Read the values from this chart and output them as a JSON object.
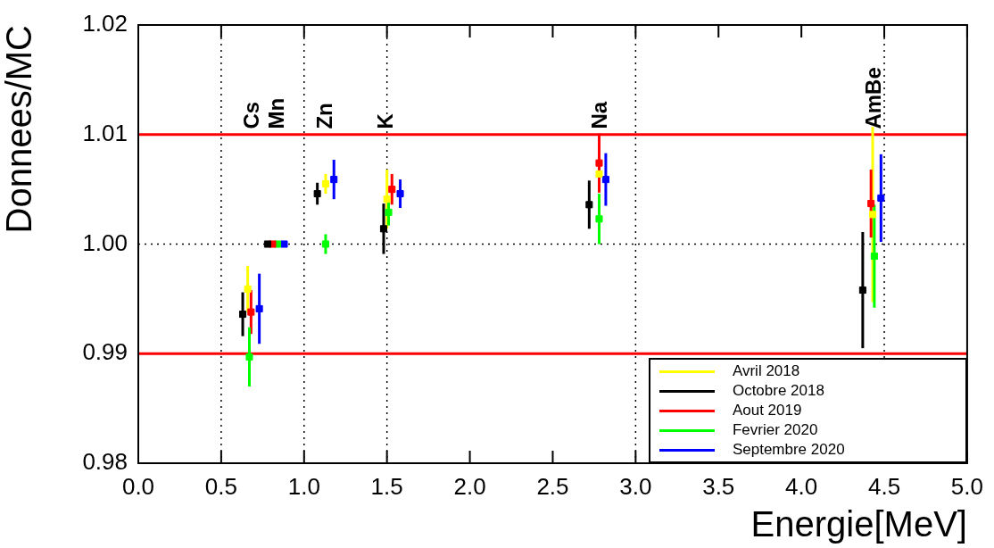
{
  "chart_data": {
    "type": "scatter",
    "xlabel": "Energie[MeV]",
    "ylabel": "Donnees/MC",
    "xlim": [
      0,
      5
    ],
    "ylim": [
      0.98,
      1.02
    ],
    "xticks": [
      {
        "value": 0,
        "label": "0.0"
      },
      {
        "value": 0.5,
        "label": "0.5"
      },
      {
        "value": 1,
        "label": "1.0"
      },
      {
        "value": 1.5,
        "label": "1.5"
      },
      {
        "value": 2,
        "label": "2.0"
      },
      {
        "value": 2.5,
        "label": "2.5"
      },
      {
        "value": 3,
        "label": "3.0"
      },
      {
        "value": 3.5,
        "label": "3.5"
      },
      {
        "value": 4,
        "label": "4.0"
      },
      {
        "value": 4.5,
        "label": "4.5"
      },
      {
        "value": 5,
        "label": "5.0"
      }
    ],
    "yticks": [
      0.98,
      0.99,
      {
        "value": 1,
        "label": "1.00"
      },
      1.01,
      1.02
    ],
    "grid": false,
    "legend": "bottom right",
    "marker": "square",
    "series": [
      {
        "name": "Avril 2018",
        "color": "#ffff00",
        "x": [
          0.66,
          1.13,
          1.5,
          2.78,
          4.43
        ],
        "values": [
          0.9959,
          1.0055,
          1.0041,
          1.0064,
          1.0027
        ],
        "errors": [
          0.0021,
          0.0009,
          0.0027,
          null,
          0.008
        ]
      },
      {
        "name": "Octobre 2018",
        "color": "#000000",
        "x": [
          0.63,
          0.78,
          1.08,
          1.48,
          2.72,
          4.37
        ],
        "values": [
          0.9936,
          1.0,
          1.0046,
          1.0014,
          1.0036,
          0.9958
        ],
        "errors": [
          0.002,
          null,
          0.001,
          0.0023,
          0.0022,
          0.0053
        ]
      },
      {
        "name": "Aout 2019",
        "color": "#ff0000",
        "x": [
          0.68,
          0.81,
          1.53,
          2.78,
          4.42
        ],
        "values": [
          0.9938,
          1.0,
          1.005,
          1.0074,
          1.0037
        ],
        "errors": [
          0.002,
          null,
          0.0014,
          0.0027,
          0.0031
        ]
      },
      {
        "name": "Fevrier 2020",
        "color": "#00ff00",
        "x": [
          0.67,
          0.84,
          1.13,
          1.51,
          2.78,
          4.44
        ],
        "values": [
          0.9897,
          1.0,
          1.0,
          1.0029,
          1.0023,
          0.9989
        ],
        "errors": [
          0.0027,
          null,
          0.0009,
          0.0012,
          0.0023,
          0.0047
        ]
      },
      {
        "name": "Septembre 2020",
        "color": "#0000ff",
        "x": [
          0.73,
          0.88,
          1.18,
          1.58,
          2.82,
          4.48
        ],
        "values": [
          0.9941,
          1.0,
          1.0059,
          1.0046,
          1.0059,
          1.0042
        ],
        "errors": [
          0.0032,
          null,
          0.0018,
          0.0013,
          0.0024,
          0.004
        ]
      }
    ],
    "ref_lines": [
      {
        "axis": "y",
        "value": 1.01,
        "color": "#ff0000",
        "line_style": "solid"
      },
      {
        "axis": "y",
        "value": 0.99,
        "color": "#ff0000",
        "line_style": "solid"
      },
      {
        "axis": "y",
        "value": 1.0,
        "color": "#000000",
        "line_style": "dotted"
      },
      {
        "axis": "x",
        "value": 0.5,
        "color": "#000000",
        "line_style": "dotted"
      },
      {
        "axis": "x",
        "value": 1.0,
        "color": "#000000",
        "line_style": "dotted"
      },
      {
        "axis": "x",
        "value": 1.5,
        "color": "#000000",
        "line_style": "dotted"
      },
      {
        "axis": "x",
        "value": 3.0,
        "color": "#000000",
        "line_style": "dotted"
      },
      {
        "axis": "x",
        "value": 4.5,
        "color": "#000000",
        "line_style": "dotted"
      }
    ],
    "annotations": [
      {
        "text": "Cs",
        "x": 0.69,
        "y": 1.0105
      },
      {
        "text": "Mn",
        "x": 0.84,
        "y": 1.0105
      },
      {
        "text": "Zn",
        "x": 1.13,
        "y": 1.0105
      },
      {
        "text": "K",
        "x": 1.5,
        "y": 1.0105
      },
      {
        "text": "Na",
        "x": 2.79,
        "y": 1.0105
      },
      {
        "text": "AmBe",
        "x": 4.44,
        "y": 1.0105
      }
    ]
  }
}
